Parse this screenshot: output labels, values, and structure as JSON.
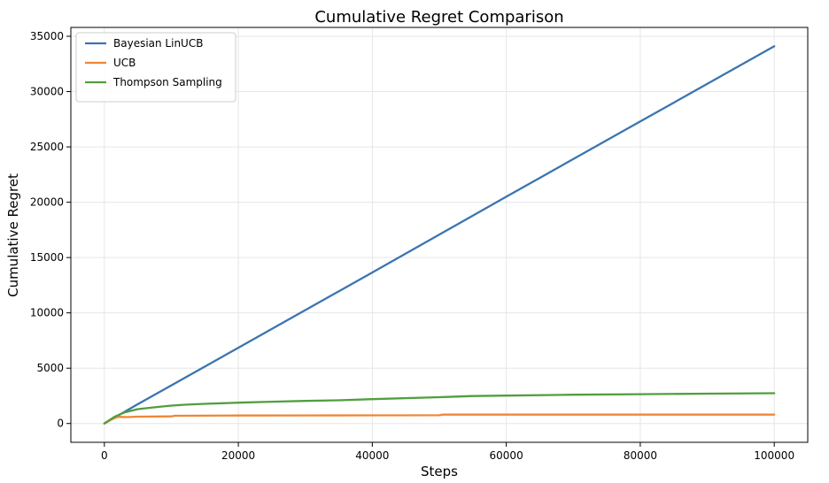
{
  "chart_data": {
    "type": "line",
    "title": "Cumulative Regret Comparison",
    "xlabel": "Steps",
    "ylabel": "Cumulative Regret",
    "xlim": [
      -5000,
      105000
    ],
    "ylim": [
      -1700,
      35800
    ],
    "xticks": [
      0,
      20000,
      40000,
      60000,
      80000,
      100000
    ],
    "yticks": [
      0,
      5000,
      10000,
      15000,
      20000,
      25000,
      30000,
      35000
    ],
    "grid": true,
    "legend_position": "top-left",
    "series": [
      {
        "name": "Bayesian LinUCB",
        "color": "#3b75af",
        "x": [
          0,
          2000,
          5000,
          10000,
          20000,
          40000,
          60000,
          80000,
          100000
        ],
        "y": [
          0,
          700,
          1750,
          3450,
          6850,
          13650,
          20500,
          27300,
          34100
        ]
      },
      {
        "name": "UCB",
        "color": "#ef8636",
        "x": [
          0,
          1000,
          2000,
          3500,
          5000,
          10000,
          10500,
          20000,
          30000,
          40000,
          50000,
          50500,
          60000,
          80000,
          100000
        ],
        "y": [
          0,
          350,
          600,
          580,
          620,
          640,
          700,
          720,
          730,
          740,
          750,
          800,
          800,
          800,
          800
        ]
      },
      {
        "name": "Thompson Sampling",
        "color": "#519e3e",
        "x": [
          0,
          1500,
          3000,
          5000,
          8000,
          10000,
          12000,
          15000,
          20000,
          25000,
          30000,
          35000,
          40000,
          50000,
          55000,
          60000,
          70000,
          80000,
          90000,
          100000
        ],
        "y": [
          0,
          600,
          1000,
          1300,
          1500,
          1620,
          1700,
          1780,
          1880,
          1970,
          2040,
          2100,
          2200,
          2380,
          2480,
          2520,
          2600,
          2650,
          2700,
          2740
        ]
      }
    ]
  }
}
